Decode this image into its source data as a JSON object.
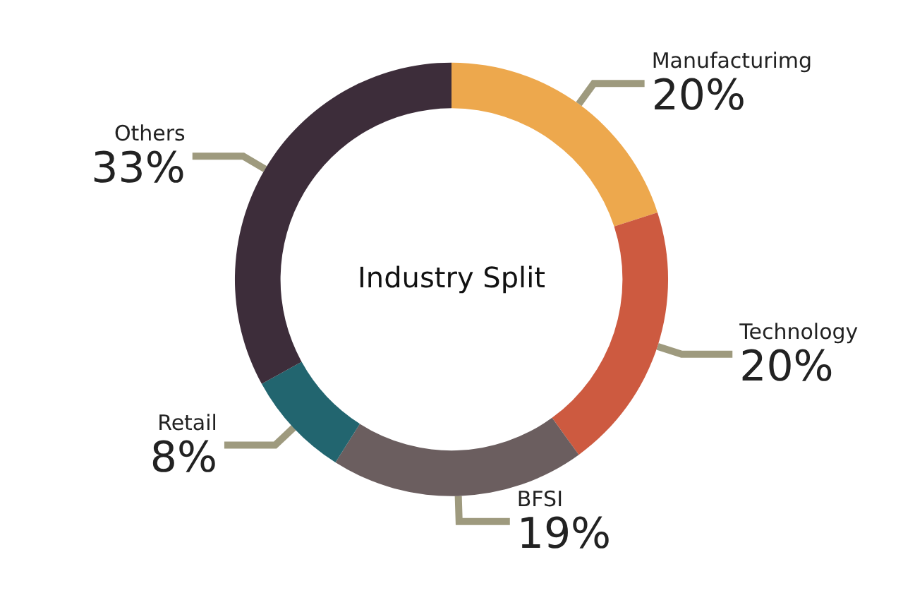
{
  "chart_data": {
    "type": "donut",
    "title": "Industry Split",
    "categories": [
      "Manufacturimg",
      "Technology",
      "BFSI",
      "Retail",
      "Others"
    ],
    "values": [
      20,
      20,
      19,
      8,
      33
    ],
    "colors": [
      "#eda84d",
      "#cd5a40",
      "#6b5e5f",
      "#22656f",
      "#3d2d3a"
    ],
    "value_labels": [
      "20%",
      "20%",
      "19%",
      "8%",
      "33%"
    ],
    "legend": false
  }
}
